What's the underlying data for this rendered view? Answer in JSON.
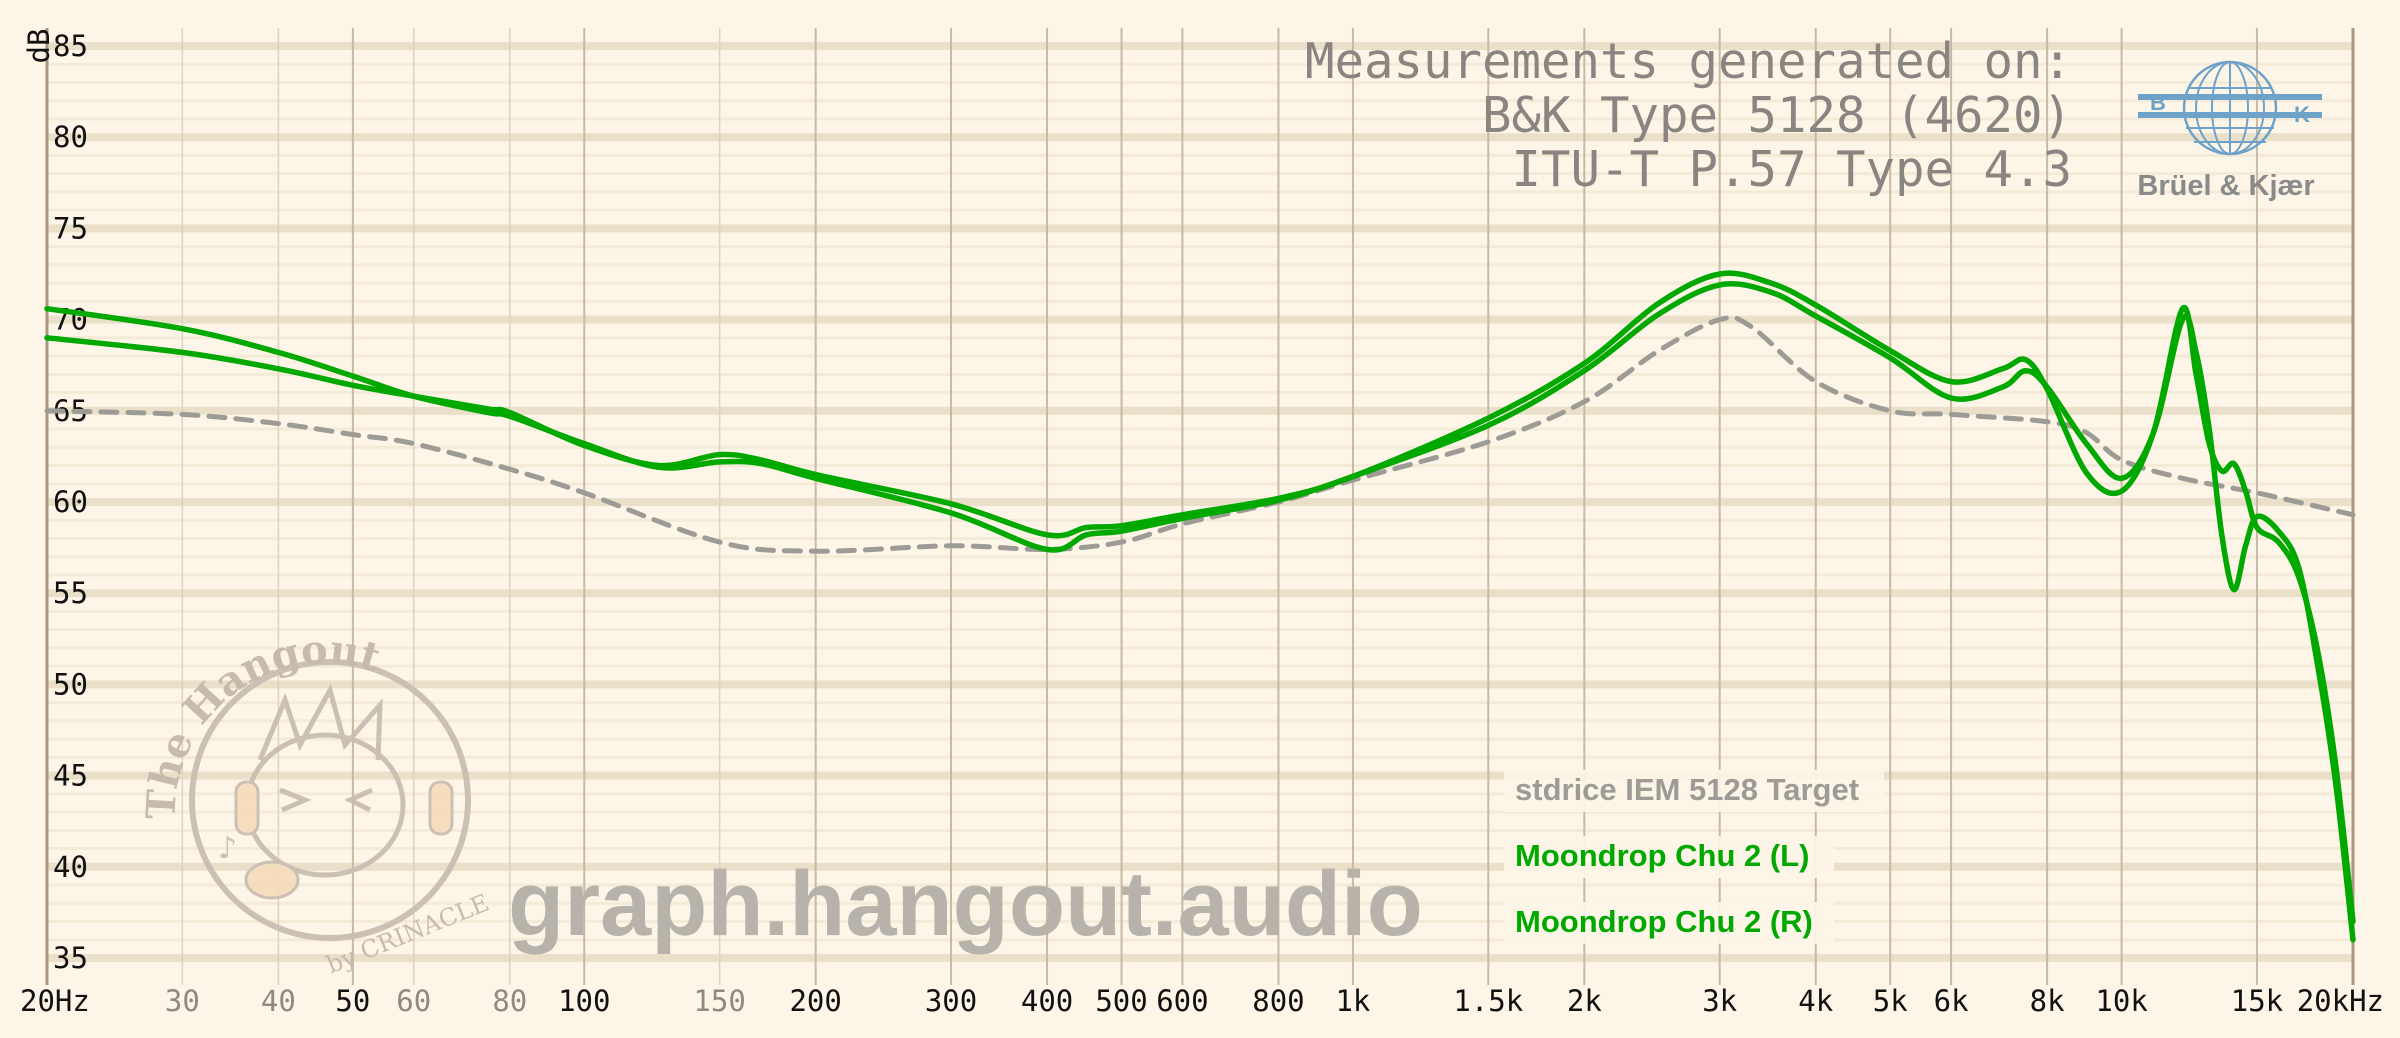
{
  "chart_data": {
    "type": "line",
    "title": "",
    "xlabel": "",
    "ylabel": "dB",
    "x_scale": "log",
    "xlim": [
      20,
      20000
    ],
    "ylim": [
      35,
      85
    ],
    "y_ticks": [
      85,
      80,
      75,
      70,
      65,
      60,
      55,
      50,
      45,
      40,
      35
    ],
    "x_ticks": [
      {
        "v": 20,
        "label": "20Hz",
        "major": true
      },
      {
        "v": 30,
        "label": "30",
        "major": false
      },
      {
        "v": 40,
        "label": "40",
        "major": false
      },
      {
        "v": 50,
        "label": "50",
        "major": true
      },
      {
        "v": 60,
        "label": "60",
        "major": false
      },
      {
        "v": 80,
        "label": "80",
        "major": false
      },
      {
        "v": 100,
        "label": "100",
        "major": true
      },
      {
        "v": 150,
        "label": "150",
        "major": false
      },
      {
        "v": 200,
        "label": "200",
        "major": true
      },
      {
        "v": 300,
        "label": "300",
        "major": true
      },
      {
        "v": 400,
        "label": "400",
        "major": true
      },
      {
        "v": 500,
        "label": "500",
        "major": true
      },
      {
        "v": 600,
        "label": "600",
        "major": true
      },
      {
        "v": 800,
        "label": "800",
        "major": true
      },
      {
        "v": 1000,
        "label": "1k",
        "major": true
      },
      {
        "v": 1500,
        "label": "1.5k",
        "major": true
      },
      {
        "v": 2000,
        "label": "2k",
        "major": true
      },
      {
        "v": 3000,
        "label": "3k",
        "major": true
      },
      {
        "v": 4000,
        "label": "4k",
        "major": true
      },
      {
        "v": 5000,
        "label": "5k",
        "major": true
      },
      {
        "v": 6000,
        "label": "6k",
        "major": true
      },
      {
        "v": 8000,
        "label": "8k",
        "major": true
      },
      {
        "v": 10000,
        "label": "10k",
        "major": true
      },
      {
        "v": 15000,
        "label": "15k",
        "major": true
      },
      {
        "v": 20000,
        "label": "20kHz",
        "major": true
      }
    ],
    "grid": true,
    "legend_position": "bottom-right",
    "series": [
      {
        "name": "stdrice IEM 5128 Target",
        "color": "#9c9b96",
        "style": "dashed",
        "points": [
          [
            20,
            65.0
          ],
          [
            30,
            64.8
          ],
          [
            40,
            64.3
          ],
          [
            50,
            63.7
          ],
          [
            60,
            63.2
          ],
          [
            80,
            61.8
          ],
          [
            100,
            60.5
          ],
          [
            150,
            57.8
          ],
          [
            200,
            57.3
          ],
          [
            300,
            57.6
          ],
          [
            400,
            57.4
          ],
          [
            500,
            57.8
          ],
          [
            600,
            58.8
          ],
          [
            800,
            60.0
          ],
          [
            1000,
            61.2
          ],
          [
            1500,
            63.3
          ],
          [
            2000,
            65.5
          ],
          [
            2500,
            68.3
          ],
          [
            3000,
            70.0
          ],
          [
            3300,
            69.6
          ],
          [
            4000,
            66.6
          ],
          [
            5000,
            65.0
          ],
          [
            6000,
            64.8
          ],
          [
            8000,
            64.4
          ],
          [
            9000,
            63.8
          ],
          [
            10000,
            62.3
          ],
          [
            12000,
            61.3
          ],
          [
            15000,
            60.5
          ],
          [
            20000,
            59.3
          ]
        ]
      },
      {
        "name": "Moondrop Chu 2 (L)",
        "color": "#00a800",
        "style": "solid",
        "points": [
          [
            20,
            70.6
          ],
          [
            30,
            69.5
          ],
          [
            40,
            68.2
          ],
          [
            50,
            66.9
          ],
          [
            60,
            65.8
          ],
          [
            75,
            64.9
          ],
          [
            80,
            64.7
          ],
          [
            100,
            63.2
          ],
          [
            125,
            61.9
          ],
          [
            150,
            62.2
          ],
          [
            170,
            62.1
          ],
          [
            200,
            61.3
          ],
          [
            300,
            59.4
          ],
          [
            400,
            57.4
          ],
          [
            450,
            58.2
          ],
          [
            500,
            58.4
          ],
          [
            600,
            59.1
          ],
          [
            800,
            60.1
          ],
          [
            1000,
            61.4
          ],
          [
            1500,
            64.2
          ],
          [
            2000,
            67.2
          ],
          [
            2500,
            70.3
          ],
          [
            3000,
            71.9
          ],
          [
            3500,
            71.5
          ],
          [
            4000,
            70.2
          ],
          [
            5000,
            67.9
          ],
          [
            6000,
            65.7
          ],
          [
            7000,
            66.3
          ],
          [
            7500,
            67.2
          ],
          [
            8000,
            66.3
          ],
          [
            9000,
            63.2
          ],
          [
            10000,
            61.3
          ],
          [
            11000,
            63.8
          ],
          [
            12000,
            70.0
          ],
          [
            12500,
            68.2
          ],
          [
            13000,
            64.0
          ],
          [
            13500,
            58.2
          ],
          [
            14000,
            55.2
          ],
          [
            14500,
            57.6
          ],
          [
            15000,
            59.2
          ],
          [
            16000,
            58.4
          ],
          [
            17000,
            56.4
          ],
          [
            18000,
            51.0
          ],
          [
            19000,
            44.5
          ],
          [
            20000,
            36.0
          ]
        ]
      },
      {
        "name": "Moondrop Chu 2 (R)",
        "color": "#00a800",
        "style": "solid",
        "points": [
          [
            20,
            69.0
          ],
          [
            30,
            68.2
          ],
          [
            40,
            67.3
          ],
          [
            50,
            66.4
          ],
          [
            60,
            65.8
          ],
          [
            75,
            65.1
          ],
          [
            80,
            64.9
          ],
          [
            100,
            63.1
          ],
          [
            125,
            62.0
          ],
          [
            150,
            62.6
          ],
          [
            170,
            62.3
          ],
          [
            200,
            61.5
          ],
          [
            300,
            59.9
          ],
          [
            400,
            58.2
          ],
          [
            450,
            58.6
          ],
          [
            500,
            58.7
          ],
          [
            600,
            59.3
          ],
          [
            800,
            60.2
          ],
          [
            1000,
            61.4
          ],
          [
            1500,
            64.6
          ],
          [
            2000,
            67.6
          ],
          [
            2500,
            70.9
          ],
          [
            3000,
            72.5
          ],
          [
            3500,
            72.0
          ],
          [
            4000,
            70.8
          ],
          [
            5000,
            68.3
          ],
          [
            6000,
            66.6
          ],
          [
            7000,
            67.3
          ],
          [
            7500,
            67.8
          ],
          [
            8000,
            66.2
          ],
          [
            9000,
            61.6
          ],
          [
            10000,
            60.6
          ],
          [
            11000,
            63.8
          ],
          [
            12000,
            70.6
          ],
          [
            12500,
            67.0
          ],
          [
            13000,
            63.2
          ],
          [
            13500,
            61.7
          ],
          [
            14000,
            62.1
          ],
          [
            14500,
            60.6
          ],
          [
            15000,
            58.6
          ],
          [
            16000,
            57.8
          ],
          [
            17000,
            55.9
          ],
          [
            18000,
            51.8
          ],
          [
            19000,
            45.5
          ],
          [
            20000,
            37.0
          ]
        ]
      }
    ],
    "annotations": {
      "info_lines": [
        "Measurements generated on:",
        "B&K Type 5128 (4620)",
        "ITU-T P.57 Type 4.3"
      ],
      "logo_text": "Brüel & Kjær",
      "logo_letters": [
        "B",
        "K"
      ],
      "watermark": "graph.hangout.audio",
      "badge_title": "The Hangout",
      "badge_byline": "by CRINACLE"
    }
  }
}
